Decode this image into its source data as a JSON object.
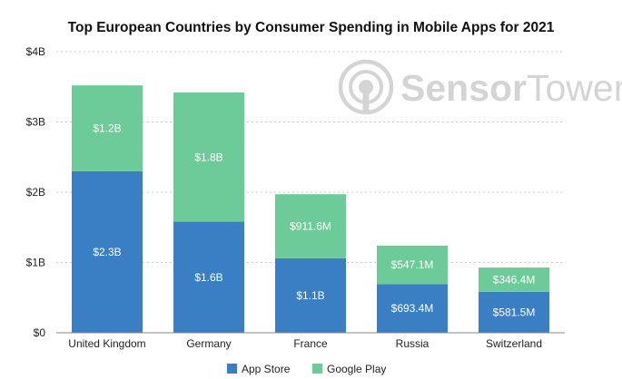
{
  "chart_data": {
    "type": "bar",
    "stacked": true,
    "title": "Top European Countries by Consumer Spending in Mobile Apps for 2021",
    "categories": [
      "United Kingdom",
      "Germany",
      "France",
      "Russia",
      "Switzerland"
    ],
    "series": [
      {
        "name": "App Store",
        "color": "#3a7fc4",
        "values": [
          2.3,
          1.58,
          1.06,
          0.6934,
          0.5815
        ],
        "labels": [
          "$2.3B",
          "$1.6B",
          "$1.1B",
          "$693.4M",
          "$581.5M"
        ]
      },
      {
        "name": "Google Play",
        "color": "#6ccb98",
        "values": [
          1.22,
          1.84,
          0.9116,
          0.5471,
          0.3464
        ],
        "labels": [
          "$1.2B",
          "$1.8B",
          "$911.6M",
          "$547.1M",
          "$346.4M"
        ]
      }
    ],
    "ylim": [
      0,
      4
    ],
    "yticks": [
      0,
      1,
      2,
      3,
      4
    ],
    "ytick_labels": [
      "$0",
      "$1B",
      "$2B",
      "$3B",
      "$4B"
    ],
    "grid": true,
    "legend_position": "bottom"
  },
  "watermark": {
    "brand_first": "Sensor",
    "brand_second": "Tower"
  }
}
